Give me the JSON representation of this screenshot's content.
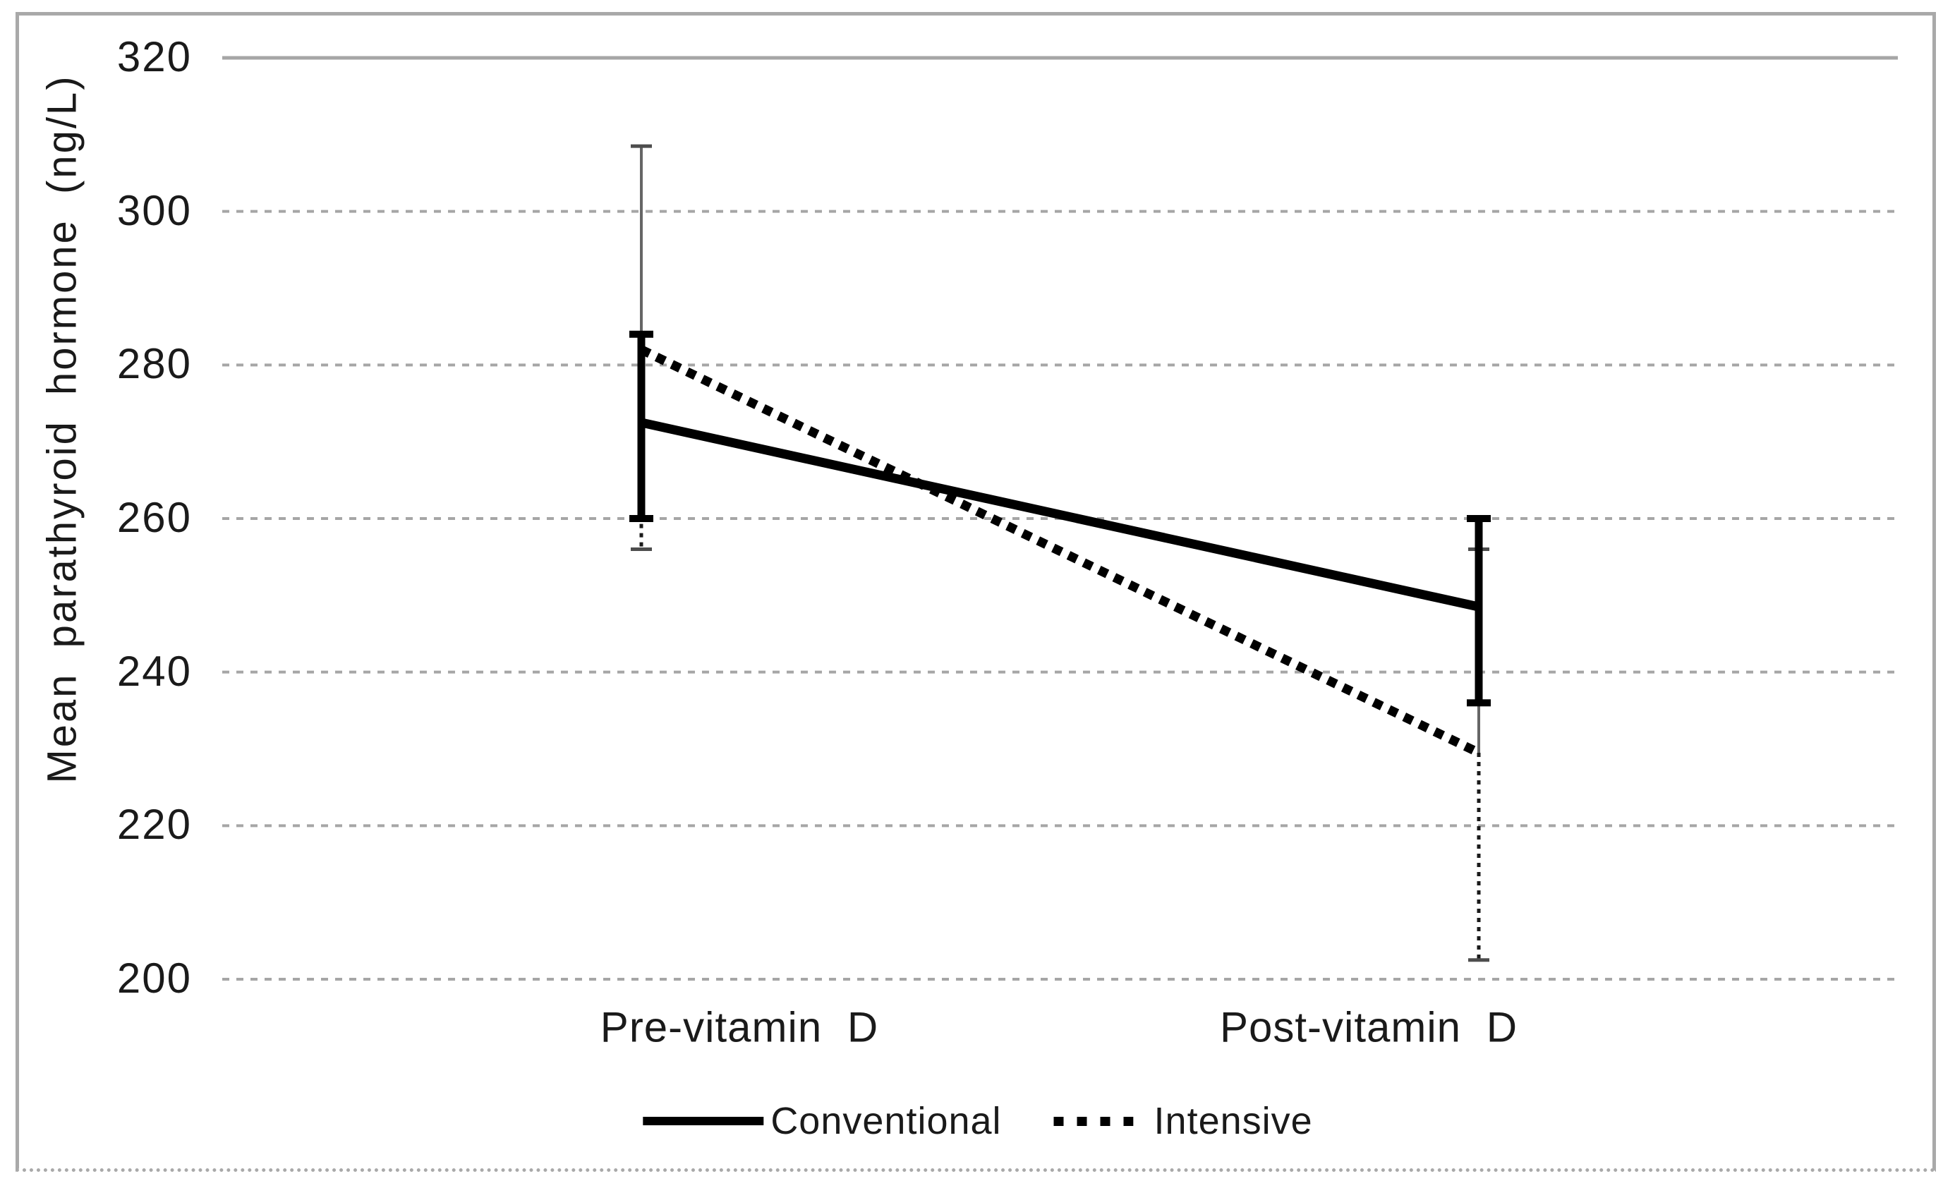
{
  "chart_data": {
    "type": "line",
    "title": "",
    "xlabel": "",
    "ylabel": "Mean parathyroid hormone (ng/L)",
    "categories": [
      "Pre-vitamin D",
      "Post-vitamin D"
    ],
    "yticks": [
      320,
      300,
      280,
      260,
      240,
      220,
      200
    ],
    "ylim": [
      200,
      320
    ],
    "grid": "horizontal only; top gridline solid, remaining gridlines dashed",
    "legend_position": "bottom center",
    "series": [
      {
        "name": "Conventional",
        "line_style": "solid thick",
        "color": "#000000",
        "values": [
          272.5,
          248.5
        ],
        "error_bars": {
          "style": "thick solid black with caps",
          "upper": [
            284,
            260
          ],
          "lower": [
            260,
            236
          ]
        }
      },
      {
        "name": "Intensive",
        "line_style": "dotted thick",
        "color": "#000000",
        "values": [
          282,
          229.5
        ],
        "error_bars": {
          "style": "thin; solid gray above point, dotted black below point, small caps",
          "upper": [
            308.5,
            256
          ],
          "lower": [
            256,
            202.5
          ]
        }
      }
    ],
    "colors": {
      "gridline": "#a6a6a6",
      "frame_border": "#a9a9a9",
      "text": "#1a1a1a",
      "thin_error_line": "#666666",
      "thin_error_cap": "#4d4d4d"
    }
  }
}
